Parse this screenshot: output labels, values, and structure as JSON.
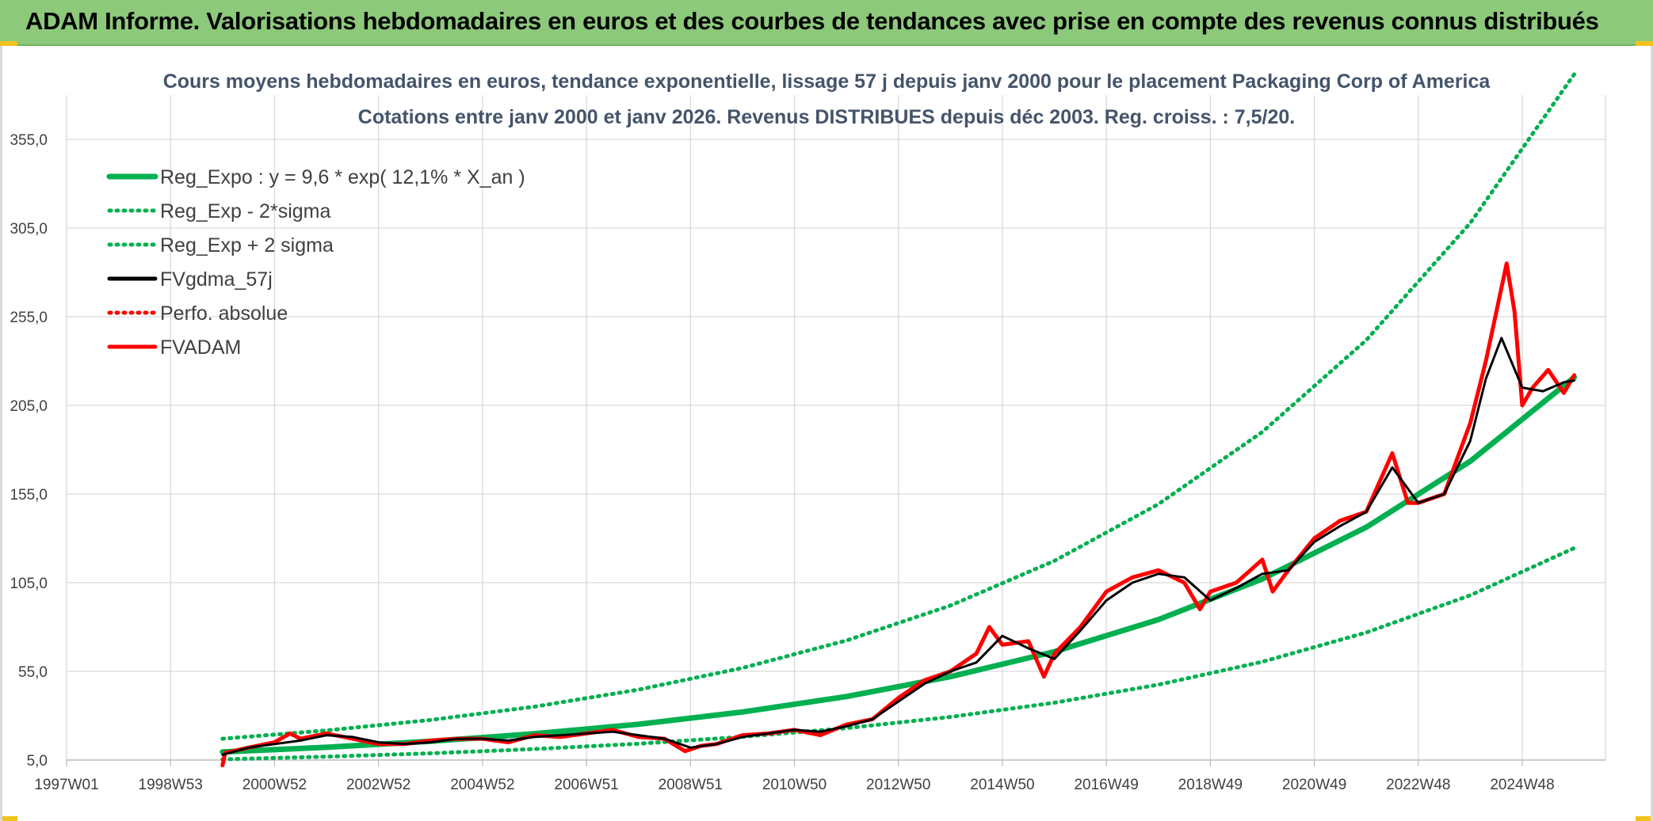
{
  "header": {
    "title": "ADAM Informe. Valorisations hebdomadaires en euros et des courbes de tendances avec prise en compte des revenus connus distribués"
  },
  "chart_data": {
    "type": "line",
    "title_line1": "Cours moyens hebdomadaires en euros, tendance exponentielle, lissage 57 j depuis janv 2000 pour le placement Packaging Corp of America",
    "title_line2": "Cotations entre janv 2000 et janv 2026. Revenus DISTRIBUES depuis déc 2003. Reg. croiss. : 7,5/20.",
    "x_tick_labels": [
      "1997W01",
      "1998W53",
      "2000W52",
      "2002W52",
      "2004W52",
      "2006W51",
      "2008W51",
      "2010W50",
      "2012W50",
      "2014W50",
      "2016W49",
      "2018W49",
      "2020W49",
      "2022W48",
      "2024W48"
    ],
    "x_tick_years": [
      1997,
      1999,
      2001,
      2003,
      2005,
      2007,
      2009,
      2011,
      2013,
      2015,
      2017,
      2019,
      2021,
      2023,
      2025
    ],
    "xlim": [
      1997,
      2026.6
    ],
    "ylim": [
      5,
      380
    ],
    "y_ticks": [
      5,
      55,
      105,
      155,
      205,
      255,
      305,
      355
    ],
    "y_tick_labels": [
      "5,0",
      "55,0",
      "105,0",
      "155,0",
      "205,0",
      "255,0",
      "305,0",
      "355,0"
    ],
    "grid": true,
    "legend_position": "top-left",
    "series": [
      {
        "name": "Reg_Expo : y = 9,6 * exp( 12,1% *  X_an )",
        "color": "#00b050",
        "style": "solid",
        "x": [
          2000,
          2002,
          2004,
          2006,
          2008,
          2010,
          2012,
          2014,
          2016,
          2018,
          2020,
          2022,
          2024,
          2026
        ],
        "y": [
          9.6,
          12.2,
          15.6,
          19.8,
          25.2,
          32.1,
          40.8,
          52.0,
          66.1,
          84.2,
          107.1,
          136.3,
          173.5,
          220.8
        ]
      },
      {
        "name": "Reg_Exp - 2*sigma",
        "color": "#00b050",
        "style": "dotted",
        "x": [
          2000,
          2002,
          2004,
          2006,
          2008,
          2010,
          2012,
          2014,
          2016,
          2018,
          2020,
          2022,
          2024,
          2026
        ],
        "y": [
          5.4,
          6.9,
          8.8,
          11.2,
          14.2,
          18.1,
          23.0,
          29.3,
          37.3,
          47.5,
          60.4,
          76.9,
          97.9,
          124.5
        ]
      },
      {
        "name": "Reg_Exp + 2 sigma",
        "color": "#00b050",
        "style": "dotted",
        "x": [
          2000,
          2002,
          2004,
          2006,
          2008,
          2010,
          2012,
          2014,
          2016,
          2018,
          2020,
          2022,
          2024,
          2026
        ],
        "y": [
          17.0,
          21.7,
          27.6,
          35.1,
          44.7,
          56.9,
          72.4,
          92.1,
          117.3,
          149.3,
          190.0,
          241.8,
          307.8,
          391.7
        ]
      },
      {
        "name": "FVgdma_57j",
        "color": "#000000",
        "style": "solid",
        "x": [
          2000.0,
          2000.5,
          2001.0,
          2001.5,
          2002.0,
          2002.5,
          2003.0,
          2003.5,
          2004.0,
          2004.5,
          2005.0,
          2005.5,
          2006.0,
          2006.5,
          2007.0,
          2007.5,
          2008.0,
          2008.5,
          2009.0,
          2009.5,
          2010.0,
          2010.5,
          2011.0,
          2011.5,
          2012.0,
          2012.5,
          2013.0,
          2013.5,
          2014.0,
          2014.5,
          2015.0,
          2015.5,
          2016.0,
          2016.5,
          2017.0,
          2017.5,
          2018.0,
          2018.5,
          2019.0,
          2019.5,
          2020.0,
          2020.5,
          2021.0,
          2021.5,
          2022.0,
          2022.5,
          2023.0,
          2023.5,
          2024.0,
          2024.3,
          2024.6,
          2025.0,
          2025.4,
          2025.8,
          2026.0
        ],
        "y": [
          8,
          12,
          14,
          16,
          19,
          18,
          15,
          14,
          15,
          17,
          17,
          16,
          18,
          19,
          20,
          21,
          19,
          17,
          12,
          14,
          18,
          20,
          22,
          21,
          24,
          28,
          38,
          48,
          55,
          60,
          75,
          68,
          62,
          78,
          95,
          105,
          110,
          108,
          95,
          102,
          110,
          112,
          128,
          137,
          145,
          170,
          150,
          155,
          185,
          220,
          243,
          215,
          213,
          218,
          219
        ]
      },
      {
        "name": "Perfo. absolue",
        "color": "#ff0000",
        "style": "dotted",
        "x": [],
        "y": []
      },
      {
        "name": "FVADAM",
        "color": "#ff0000",
        "style": "solid",
        "x": [
          2000.0,
          2000.05,
          2000.5,
          2001.0,
          2001.3,
          2001.5,
          2002.0,
          2002.5,
          2003.0,
          2003.5,
          2004.0,
          2004.5,
          2005.0,
          2005.5,
          2006.0,
          2006.5,
          2007.0,
          2007.5,
          2008.0,
          2008.5,
          2008.9,
          2009.2,
          2009.5,
          2010.0,
          2010.5,
          2011.0,
          2011.5,
          2012.0,
          2012.5,
          2013.0,
          2013.5,
          2014.0,
          2014.5,
          2014.75,
          2015.0,
          2015.5,
          2015.8,
          2016.0,
          2016.5,
          2017.0,
          2017.5,
          2018.0,
          2018.5,
          2018.8,
          2019.0,
          2019.5,
          2020.0,
          2020.2,
          2020.5,
          2021.0,
          2021.5,
          2022.0,
          2022.5,
          2022.8,
          2023.0,
          2023.5,
          2024.0,
          2024.3,
          2024.7,
          2024.85,
          2025.0,
          2025.2,
          2025.5,
          2025.8,
          2026.0
        ],
        "y": [
          2,
          9,
          12,
          15,
          20,
          17,
          20,
          17,
          14,
          14,
          16,
          17,
          17,
          15,
          19,
          18,
          20,
          22,
          18,
          17,
          10,
          13,
          14,
          19,
          20,
          22,
          19,
          25,
          28,
          40,
          50,
          55,
          65,
          80,
          70,
          72,
          52,
          65,
          80,
          100,
          108,
          112,
          105,
          90,
          100,
          105,
          118,
          100,
          112,
          130,
          140,
          145,
          178,
          150,
          150,
          155,
          195,
          230,
          285,
          258,
          205,
          215,
          225,
          212,
          222
        ]
      }
    ]
  }
}
